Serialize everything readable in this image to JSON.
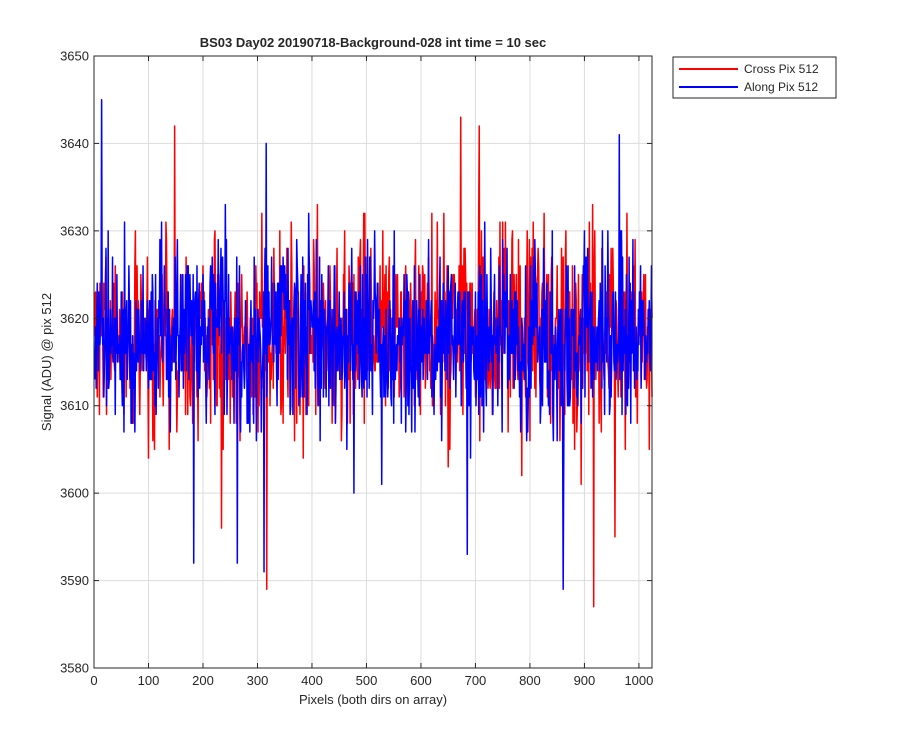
{
  "chart_data": {
    "type": "line",
    "title": "BS03 Day02 20190718-Background-028 int time = 10 sec",
    "xlabel": "Pixels (both dirs on array)",
    "ylabel": "Signal (ADU) @ pix 512",
    "xlim": [
      0,
      1024
    ],
    "ylim": [
      3580,
      3650
    ],
    "xticks": [
      0,
      100,
      200,
      300,
      400,
      500,
      600,
      700,
      800,
      900,
      1000
    ],
    "yticks": [
      3580,
      3590,
      3600,
      3610,
      3620,
      3630,
      3640,
      3650
    ],
    "grid": true,
    "legend": "outside-top-right",
    "series": [
      {
        "name": "Cross Pix 512",
        "color": "#ff0000",
        "mean": 3618,
        "spread": 5.5,
        "seed": 7,
        "extremes": [
          [
            147,
            3642
          ],
          [
            316,
            3589
          ],
          [
            672,
            3643
          ],
          [
            916,
            3587
          ],
          [
            706,
            3642
          ],
          [
            233,
            3596
          ],
          [
            955,
            3595
          ]
        ]
      },
      {
        "name": "Along Pix 512",
        "color": "#0000ff",
        "mean": 3618,
        "spread": 5.5,
        "seed": 19,
        "extremes": [
          [
            13,
            3645
          ],
          [
            311,
            3591
          ],
          [
            684,
            3593
          ],
          [
            860,
            3589
          ],
          [
            963,
            3641
          ],
          [
            182,
            3592
          ],
          [
            262,
            3592
          ],
          [
            315,
            3640
          ]
        ]
      }
    ]
  }
}
